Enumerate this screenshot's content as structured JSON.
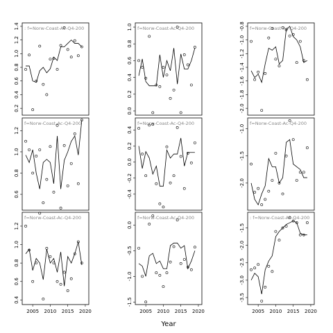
{
  "chart_data": [
    {
      "type": "scatter-line",
      "title": ": f=Norw-Coast-Ac-Q4-200",
      "xlim": [
        2002,
        2021
      ],
      "x": [
        2003,
        2004,
        2005,
        2006,
        2007,
        2008,
        2009,
        2010,
        2011,
        2012,
        2013,
        2014,
        2015,
        2016,
        2017,
        2018,
        2019
      ],
      "ylim": [
        0.1,
        1.45
      ],
      "yticks": [
        0.2,
        0.4,
        0.6,
        0.8,
        {
          "value": 1,
          "label": "1.0"
        },
        1.2,
        1.4
      ],
      "series": [
        {
          "style": "points",
          "color": "#000000",
          "values": [
            0.77,
            0.98,
            0.18,
            0.6,
            1.11,
            0.55,
            0.4,
            0.92,
            0.93,
            0.77,
            1.12,
            1.38,
            1.06,
            0.95,
            1.19,
            0.97,
            1.1
          ]
        },
        {
          "style": "line",
          "color": "#000000",
          "values": [
            0.82,
            0.82,
            0.6,
            0.58,
            0.75,
            0.8,
            0.72,
            0.78,
            0.95,
            0.9,
            1.1,
            1.1,
            1.15,
            1.2,
            1.15,
            1.15,
            1.1
          ]
        }
      ]
    },
    {
      "type": "scatter-line",
      "title": "f=Norw-Coast-Ac-Q4-200",
      "xlim": [
        2002,
        2021
      ],
      "x": [
        2003,
        2004,
        2005,
        2006,
        2007,
        2008,
        2009,
        2010,
        2011,
        2012,
        2013,
        2014,
        2015,
        2016,
        2017,
        2018,
        2019
      ],
      "ylim": [
        -0.05,
        1.05
      ],
      "yticks": [
        {
          "value": 0,
          "label": "0.0"
        },
        0.2,
        0.4,
        0.6,
        0.8,
        {
          "value": 1,
          "label": "1.0"
        }
      ],
      "series": [
        {
          "style": "points",
          "color": "#000000",
          "values": [
            0.6,
            0.52,
            0.39,
            0.89,
            -0.02,
            0.31,
            0.29,
            0.52,
            0.43,
            0.15,
            0.25,
            1.0,
            -0.02,
            0.67,
            0.55,
            0.31,
            0.76
          ]
        },
        {
          "style": "line",
          "color": "#000000",
          "values": [
            0.42,
            0.62,
            0.35,
            0.3,
            0.3,
            0.3,
            0.67,
            0.4,
            0.6,
            0.48,
            0.75,
            0.32,
            0.68,
            0.5,
            0.5,
            0.6,
            0.75
          ]
        }
      ]
    },
    {
      "type": "scatter-line",
      "title": "f=Norw-Coast-Ac-Q4-200",
      "xlim": [
        2002,
        2021
      ],
      "x": [
        2003,
        2004,
        2005,
        2006,
        2007,
        2008,
        2009,
        2010,
        2011,
        2012,
        2013,
        2014,
        2015,
        2016,
        2017,
        2018,
        2019
      ],
      "ylim": [
        -2.1,
        -0.75
      ],
      "yticks": [
        {
          "value": -2,
          "label": "-2.0"
        },
        -1.8,
        -1.6,
        -1.4,
        -1.2,
        {
          "value": -1,
          "label": "-1.0"
        },
        -0.8
      ],
      "series": [
        {
          "style": "points",
          "color": "#000000",
          "values": [
            -1.02,
            -1.58,
            -1.47,
            -2.03,
            -1.49,
            -0.97,
            -0.83,
            -1.28,
            -1.38,
            -0.82,
            -0.85,
            -0.94,
            -0.92,
            -1.33,
            -1.02,
            -1.3,
            -1.58
          ]
        },
        {
          "style": "line",
          "color": "#000000",
          "values": [
            -1.45,
            -1.55,
            -1.5,
            -1.62,
            -1.35,
            -1.12,
            -1.15,
            -1.1,
            -1.35,
            -1.3,
            -0.85,
            -0.8,
            -0.95,
            -1.0,
            -1.1,
            -1.33,
            -1.3
          ]
        }
      ]
    },
    {
      "type": "scatter-line",
      "title": "f=Norw-Coast-Ac-Q4-200",
      "xlim": [
        2002,
        2021
      ],
      "x": [
        2003,
        2004,
        2005,
        2006,
        2007,
        2008,
        2009,
        2010,
        2011,
        2012,
        2013,
        2014,
        2015,
        2016,
        2017,
        2018,
        2019
      ],
      "ylim": [
        0.45,
        1.32
      ],
      "yticks": [
        0.6,
        0.8,
        {
          "value": 1,
          "label": "1.0"
        },
        1.2
      ],
      "series": [
        {
          "style": "points",
          "color": "#000000",
          "values": [
            1.1,
            1.02,
            0.8,
            0.96,
            1.02,
            0.52,
            0.74,
            1.05,
            0.62,
            1.25,
            0.47,
            1.06,
            0.68,
            0.89,
            1.17,
            0.7,
            1.3
          ]
        },
        {
          "style": "line",
          "color": "#000000",
          "values": [
            0.97,
            0.9,
            1.02,
            0.8,
            0.65,
            0.9,
            0.93,
            0.9,
            0.7,
            1.15,
            0.65,
            0.92,
            1.0,
            1.1,
            1.15,
            0.97,
            1.3
          ]
        }
      ]
    },
    {
      "type": "scatter-line",
      "title": "f=Norw-Coast-Ac-Q4-200",
      "xlim": [
        2002,
        2021
      ],
      "x": [
        2003,
        2004,
        2005,
        2006,
        2007,
        2008,
        2009,
        2010,
        2011,
        2012,
        2013,
        2014,
        2015,
        2016,
        2017,
        2018,
        2019
      ],
      "ylim": [
        -0.6,
        0.55
      ],
      "yticks": [
        -0.4,
        -0.2,
        {
          "value": 0,
          "label": "0.0"
        },
        0.2,
        0.4
      ],
      "series": [
        {
          "style": "points",
          "color": "#000000",
          "values": [
            0.42,
            0.1,
            -0.17,
            0.46,
            0.47,
            -0.27,
            -0.52,
            -0.56,
            0.19,
            -0.26,
            -0.17,
            0.43,
            0.07,
            -0.33,
            0.11,
            -0.01,
            0.24
          ]
        },
        {
          "style": "line",
          "color": "#000000",
          "values": [
            0.2,
            -0.08,
            0.13,
            0.05,
            -0.15,
            -0.05,
            -0.3,
            -0.3,
            0.15,
            0.05,
            0.1,
            0.1,
            0.3,
            -0.05,
            0.12,
            0.12,
            0.12
          ]
        }
      ]
    },
    {
      "type": "scatter-line",
      "title": "f=Norw-Coast-Ac-Q4-200",
      "xlim": [
        2002,
        2021
      ],
      "x": [
        2003,
        2004,
        2005,
        2006,
        2007,
        2008,
        2009,
        2010,
        2011,
        2012,
        2013,
        2014,
        2015,
        2016,
        2017,
        2018,
        2019
      ],
      "ylim": [
        -2.5,
        -0.8
      ],
      "yticks": [
        {
          "value": -2,
          "label": "-2.0"
        },
        -1.5,
        {
          "value": -1,
          "label": "-1.0"
        }
      ],
      "series": [
        {
          "style": "points",
          "color": "#000000",
          "values": [
            -1.65,
            -2.17,
            -2.1,
            -2.4,
            -2.3,
            -2.15,
            -1.95,
            -1.45,
            -2.0,
            -2.2,
            -1.5,
            -0.85,
            -1.2,
            -1.95,
            -1.8,
            -1.8,
            -1.35
          ]
        },
        {
          "style": "line",
          "color": "#000000",
          "values": [
            -2.0,
            -2.3,
            -2.4,
            -2.2,
            -2.05,
            -1.55,
            -1.7,
            -1.7,
            -2.0,
            -1.9,
            -1.25,
            -1.2,
            -1.65,
            -1.7,
            -1.75,
            -1.9,
            -1.9
          ]
        }
      ]
    },
    {
      "type": "scatter-line",
      "title": "f=Norw-Coast-Ac-Q4-200",
      "xlim": [
        2002,
        2021
      ],
      "x": [
        2003,
        2004,
        2005,
        2006,
        2007,
        2008,
        2009,
        2010,
        2011,
        2012,
        2013,
        2014,
        2015,
        2016,
        2017,
        2018,
        2019
      ],
      "xticks": [
        2005,
        2010,
        2015,
        2020
      ],
      "ylim": [
        0.35,
        1.35
      ],
      "yticks": [
        0.4,
        0.6,
        0.8,
        {
          "value": 1,
          "label": "1.0"
        },
        1.2
      ],
      "series": [
        {
          "style": "points",
          "color": "#000000",
          "values": [
            1.2,
            0.94,
            0.6,
            0.8,
            1.34,
            0.41,
            0.96,
            0.87,
            0.8,
            0.6,
            0.57,
            0.7,
            0.5,
            0.63,
            0.9,
            1.03,
            0.8
          ]
        },
        {
          "style": "line",
          "color": "#000000",
          "values": [
            0.9,
            0.95,
            0.72,
            0.85,
            0.8,
            0.62,
            0.95,
            0.8,
            0.85,
            0.7,
            0.92,
            0.55,
            0.87,
            0.8,
            0.9,
            1.03,
            0.78
          ]
        }
      ]
    },
    {
      "type": "scatter-line",
      "title": "f=Norw-Coast-Ac-Q4-200",
      "xlim": [
        2002,
        2021
      ],
      "xlabel": "Year",
      "x": [
        2003,
        2004,
        2005,
        2006,
        2007,
        2008,
        2009,
        2010,
        2011,
        2012,
        2013,
        2014,
        2015,
        2016,
        2017,
        2018,
        2019
      ],
      "xticks": [
        2005,
        2010,
        2015,
        2020
      ],
      "ylim": [
        -1.55,
        0.25
      ],
      "yticks": [
        -1.5,
        {
          "value": -1,
          "label": "-1.0"
        },
        -0.5,
        {
          "value": 0,
          "label": "0.0"
        }
      ],
      "series": [
        {
          "style": "points",
          "color": "#000000",
          "values": [
            -0.45,
            -1.0,
            -1.5,
            0.02,
            0.18,
            -0.93,
            -0.98,
            -1.2,
            -0.93,
            -0.72,
            -0.42,
            0.1,
            -0.75,
            -0.67,
            -0.82,
            -0.87,
            -0.43
          ]
        },
        {
          "style": "line",
          "color": "#000000",
          "values": [
            -0.75,
            -0.8,
            -1.0,
            -0.6,
            -0.55,
            -0.75,
            -0.7,
            -0.85,
            -0.85,
            -0.4,
            -0.35,
            -0.35,
            -0.45,
            -0.4,
            -0.85,
            -0.7,
            -0.5
          ]
        }
      ]
    },
    {
      "type": "scatter-line",
      "title": ": f=Norw-Coast-Ac-Q4-200",
      "xlim": [
        2002,
        2021
      ],
      "x": [
        2003,
        2004,
        2005,
        2006,
        2007,
        2008,
        2009,
        2010,
        2011,
        2012,
        2013,
        2014,
        2015,
        2016,
        2017,
        2018,
        2019
      ],
      "xticks": [
        2005,
        2010,
        2015,
        2020
      ],
      "ylim": [
        -3.7,
        -1.05
      ],
      "yticks": [
        -3.5,
        {
          "value": -3,
          "label": "-3.0"
        },
        -2.5,
        {
          "value": -2,
          "label": "-2.0"
        },
        -1.5
      ],
      "series": [
        {
          "style": "points",
          "color": "#000000",
          "values": [
            -2.7,
            -2.65,
            -2.55,
            -3.6,
            -3.2,
            -2.6,
            -2.75,
            -1.6,
            -1.85,
            -1.5,
            -1.45,
            -1.2,
            -1.3,
            -1.35,
            -1.7,
            -1.7,
            -1.35
          ]
        },
        {
          "style": "line",
          "color": "#000000",
          "values": [
            -3.0,
            -2.8,
            -2.9,
            -3.4,
            -2.7,
            -2.45,
            -2.3,
            -1.75,
            -1.6,
            -1.5,
            -1.4,
            -1.35,
            -1.3,
            -1.35,
            -1.65,
            -1.7,
            -1.7
          ]
        }
      ]
    }
  ]
}
